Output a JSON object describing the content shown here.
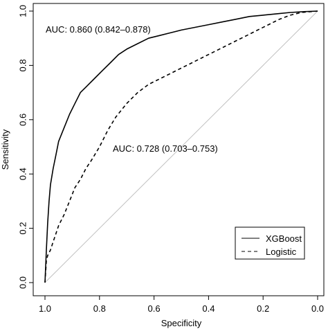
{
  "chart_data": {
    "type": "line",
    "xlabel": "Specificity",
    "ylabel": "Sensitivity",
    "xlim": [
      1.0,
      0.0
    ],
    "ylim": [
      0.0,
      1.0
    ],
    "x_reversed": true,
    "x_ticks": [
      "1.0",
      "0.8",
      "0.6",
      "0.4",
      "0.2",
      "0.0"
    ],
    "y_ticks": [
      "0.0",
      "0.2",
      "0.4",
      "0.6",
      "0.8",
      "1.0"
    ],
    "grid": false,
    "legend_position": "bottom-right",
    "reference_line": {
      "from": [
        1.0,
        0.0
      ],
      "to": [
        0.0,
        1.0
      ],
      "color": "#c0c0c0"
    },
    "annotations": [
      {
        "text": "AUC: 0.860 (0.842–0.878)",
        "series": "XGBoost"
      },
      {
        "text": "AUC: 0.728 (0.703–0.753)",
        "series": "Logistic"
      }
    ],
    "series": [
      {
        "name": "XGBoost",
        "line_style": "solid",
        "color": "#000000",
        "x": [
          1.0,
          0.995,
          0.99,
          0.985,
          0.98,
          0.97,
          0.96,
          0.95,
          0.93,
          0.91,
          0.89,
          0.87,
          0.85,
          0.82,
          0.79,
          0.76,
          0.73,
          0.7,
          0.66,
          0.62,
          0.58,
          0.54,
          0.5,
          0.45,
          0.4,
          0.35,
          0.3,
          0.25,
          0.2,
          0.15,
          0.1,
          0.05,
          0.0
        ],
        "y": [
          0.0,
          0.12,
          0.22,
          0.3,
          0.36,
          0.42,
          0.47,
          0.52,
          0.57,
          0.62,
          0.66,
          0.7,
          0.72,
          0.75,
          0.78,
          0.81,
          0.84,
          0.86,
          0.88,
          0.9,
          0.91,
          0.92,
          0.93,
          0.94,
          0.95,
          0.96,
          0.97,
          0.98,
          0.985,
          0.99,
          0.995,
          0.998,
          1.0
        ]
      },
      {
        "name": "Logistic",
        "line_style": "dashed",
        "color": "#000000",
        "x": [
          1.0,
          0.995,
          0.99,
          0.98,
          0.97,
          0.96,
          0.95,
          0.93,
          0.91,
          0.89,
          0.87,
          0.85,
          0.83,
          0.8,
          0.77,
          0.74,
          0.7,
          0.66,
          0.62,
          0.58,
          0.54,
          0.5,
          0.46,
          0.42,
          0.38,
          0.34,
          0.3,
          0.26,
          0.22,
          0.18,
          0.14,
          0.1,
          0.06,
          0.0
        ],
        "y": [
          0.0,
          0.08,
          0.1,
          0.12,
          0.15,
          0.18,
          0.21,
          0.25,
          0.3,
          0.35,
          0.38,
          0.42,
          0.45,
          0.5,
          0.56,
          0.61,
          0.66,
          0.7,
          0.73,
          0.75,
          0.77,
          0.79,
          0.81,
          0.83,
          0.85,
          0.87,
          0.89,
          0.91,
          0.93,
          0.95,
          0.97,
          0.985,
          0.995,
          1.0
        ]
      }
    ]
  }
}
